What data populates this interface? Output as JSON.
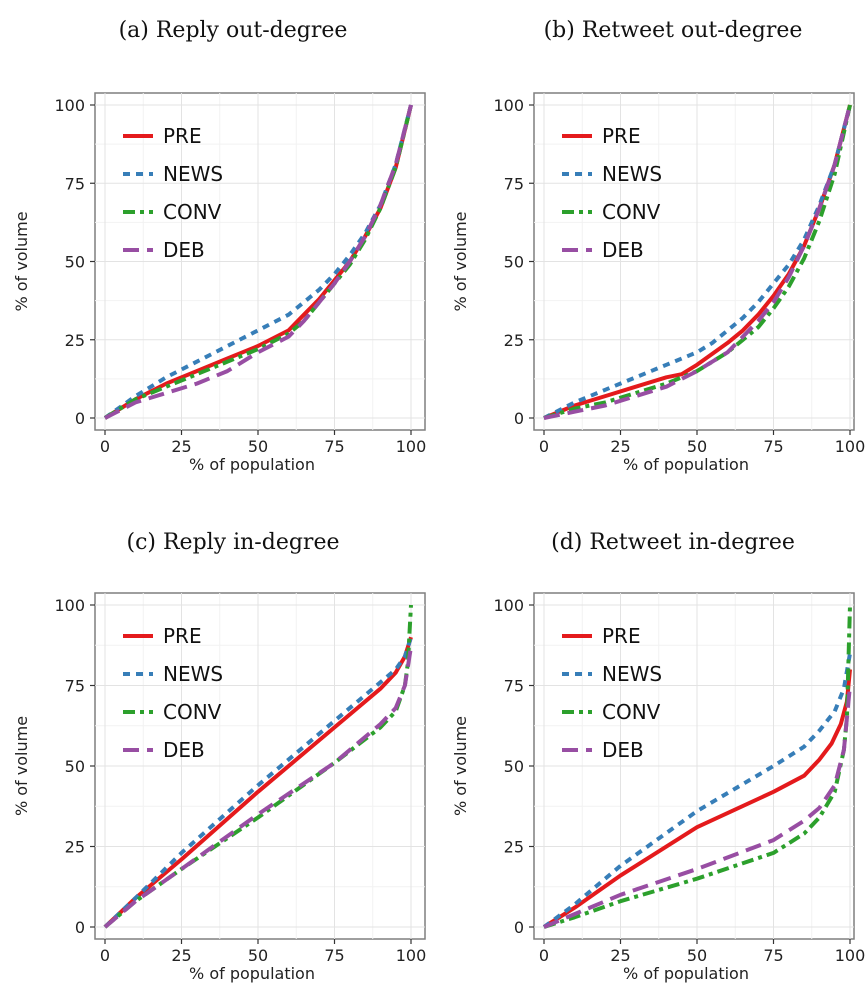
{
  "chart_data": [
    {
      "type": "line",
      "title": "(a) Reply out-degree",
      "xlabel": "% of population",
      "ylabel": "% of volume",
      "xlim": [
        0,
        100
      ],
      "ylim": [
        0,
        100
      ],
      "xticks": [
        "0",
        "25",
        "50",
        "75",
        "100"
      ],
      "yticks": [
        "0",
        "25",
        "50",
        "75",
        "100"
      ],
      "grid": true,
      "legend_position": "top-left",
      "series": [
        {
          "name": "PRE",
          "color": "#e41a1c",
          "dash": "solid",
          "points": [
            [
              0,
              0
            ],
            [
              10,
              6
            ],
            [
              20,
              11
            ],
            [
              30,
              15
            ],
            [
              40,
              19
            ],
            [
              50,
              23
            ],
            [
              60,
              28
            ],
            [
              65,
              33
            ],
            [
              70,
              38
            ],
            [
              75,
              44
            ],
            [
              80,
              50
            ],
            [
              85,
              58
            ],
            [
              90,
              67
            ],
            [
              95,
              80
            ],
            [
              100,
              100
            ]
          ]
        },
        {
          "name": "NEWS",
          "color": "#377eb8",
          "dash": "dotted",
          "points": [
            [
              0,
              0
            ],
            [
              10,
              7
            ],
            [
              20,
              13
            ],
            [
              30,
              18
            ],
            [
              40,
              23
            ],
            [
              50,
              28
            ],
            [
              60,
              33
            ],
            [
              65,
              37
            ],
            [
              70,
              41
            ],
            [
              75,
              46
            ],
            [
              80,
              52
            ],
            [
              85,
              59
            ],
            [
              90,
              68
            ],
            [
              95,
              81
            ],
            [
              100,
              100
            ]
          ]
        },
        {
          "name": "CONV",
          "color": "#2ca02c",
          "dash": "dashdot",
          "points": [
            [
              0,
              0
            ],
            [
              10,
              6
            ],
            [
              20,
              10
            ],
            [
              30,
              14
            ],
            [
              40,
              18
            ],
            [
              50,
              22
            ],
            [
              60,
              27
            ],
            [
              65,
              31
            ],
            [
              70,
              37
            ],
            [
              75,
              43
            ],
            [
              80,
              49
            ],
            [
              85,
              57
            ],
            [
              90,
              67
            ],
            [
              95,
              80
            ],
            [
              100,
              100
            ]
          ]
        },
        {
          "name": "DEB",
          "color": "#984ea3",
          "dash": "longdash",
          "points": [
            [
              0,
              0
            ],
            [
              10,
              5
            ],
            [
              20,
              8
            ],
            [
              30,
              11
            ],
            [
              40,
              15
            ],
            [
              50,
              21
            ],
            [
              60,
              26
            ],
            [
              65,
              31
            ],
            [
              70,
              37
            ],
            [
              75,
              43
            ],
            [
              80,
              50
            ],
            [
              85,
              58
            ],
            [
              90,
              68
            ],
            [
              95,
              81
            ],
            [
              100,
              100
            ]
          ]
        }
      ]
    },
    {
      "type": "line",
      "title": "(b) Retweet out-degree",
      "xlabel": "% of population",
      "ylabel": "% of volume",
      "xlim": [
        0,
        100
      ],
      "ylim": [
        0,
        100
      ],
      "xticks": [
        "0",
        "25",
        "50",
        "75",
        "100"
      ],
      "yticks": [
        "0",
        "25",
        "50",
        "75",
        "100"
      ],
      "grid": true,
      "legend_position": "top-left",
      "series": [
        {
          "name": "PRE",
          "color": "#e41a1c",
          "dash": "solid",
          "points": [
            [
              0,
              0
            ],
            [
              10,
              4
            ],
            [
              20,
              7
            ],
            [
              30,
              10
            ],
            [
              40,
              13
            ],
            [
              45,
              14
            ],
            [
              50,
              17
            ],
            [
              60,
              24
            ],
            [
              65,
              28
            ],
            [
              70,
              33
            ],
            [
              75,
              39
            ],
            [
              80,
              46
            ],
            [
              85,
              55
            ],
            [
              90,
              67
            ],
            [
              95,
              81
            ],
            [
              100,
              100
            ]
          ]
        },
        {
          "name": "NEWS",
          "color": "#377eb8",
          "dash": "dotted",
          "points": [
            [
              0,
              0
            ],
            [
              10,
              5
            ],
            [
              20,
              9
            ],
            [
              30,
              13
            ],
            [
              40,
              17
            ],
            [
              50,
              21
            ],
            [
              55,
              24
            ],
            [
              60,
              28
            ],
            [
              65,
              32
            ],
            [
              70,
              37
            ],
            [
              75,
              43
            ],
            [
              80,
              49
            ],
            [
              85,
              57
            ],
            [
              90,
              68
            ],
            [
              95,
              81
            ],
            [
              100,
              100
            ]
          ]
        },
        {
          "name": "CONV",
          "color": "#2ca02c",
          "dash": "dashdot",
          "points": [
            [
              0,
              0
            ],
            [
              10,
              3
            ],
            [
              20,
              5
            ],
            [
              30,
              8
            ],
            [
              40,
              11
            ],
            [
              50,
              15
            ],
            [
              60,
              21
            ],
            [
              65,
              25
            ],
            [
              70,
              29
            ],
            [
              75,
              35
            ],
            [
              80,
              42
            ],
            [
              85,
              51
            ],
            [
              90,
              63
            ],
            [
              95,
              78
            ],
            [
              100,
              100
            ]
          ]
        },
        {
          "name": "DEB",
          "color": "#984ea3",
          "dash": "longdash",
          "points": [
            [
              0,
              0
            ],
            [
              10,
              2
            ],
            [
              20,
              4
            ],
            [
              30,
              7
            ],
            [
              40,
              10
            ],
            [
              50,
              15
            ],
            [
              60,
              21
            ],
            [
              65,
              26
            ],
            [
              70,
              31
            ],
            [
              75,
              37
            ],
            [
              80,
              45
            ],
            [
              85,
              55
            ],
            [
              90,
              67
            ],
            [
              95,
              81
            ],
            [
              100,
              100
            ]
          ]
        }
      ]
    },
    {
      "type": "line",
      "title": "(c) Reply in-degree",
      "xlabel": "% of population",
      "ylabel": "% of volume",
      "xlim": [
        0,
        100
      ],
      "ylim": [
        0,
        100
      ],
      "xticks": [
        "0",
        "25",
        "50",
        "75",
        "100"
      ],
      "yticks": [
        "0",
        "25",
        "50",
        "75",
        "100"
      ],
      "grid": true,
      "legend_position": "top-left",
      "series": [
        {
          "name": "PRE",
          "color": "#e41a1c",
          "dash": "solid",
          "points": [
            [
              0,
              0
            ],
            [
              10,
              9
            ],
            [
              25,
              21
            ],
            [
              50,
              42
            ],
            [
              75,
              62
            ],
            [
              90,
              74
            ],
            [
              95,
              79
            ],
            [
              98,
              84
            ],
            [
              100,
              90
            ]
          ]
        },
        {
          "name": "NEWS",
          "color": "#377eb8",
          "dash": "dotted",
          "points": [
            [
              0,
              0
            ],
            [
              10,
              9
            ],
            [
              25,
              23
            ],
            [
              50,
              44
            ],
            [
              75,
              64
            ],
            [
              90,
              76
            ],
            [
              95,
              80
            ],
            [
              98,
              84
            ],
            [
              100,
              90
            ]
          ]
        },
        {
          "name": "CONV",
          "color": "#2ca02c",
          "dash": "dashdot",
          "points": [
            [
              0,
              0
            ],
            [
              10,
              8
            ],
            [
              25,
              18
            ],
            [
              50,
              34
            ],
            [
              75,
              51
            ],
            [
              90,
              62
            ],
            [
              95,
              67
            ],
            [
              98,
              75
            ],
            [
              99,
              82
            ],
            [
              100,
              100
            ]
          ]
        },
        {
          "name": "DEB",
          "color": "#984ea3",
          "dash": "longdash",
          "points": [
            [
              0,
              0
            ],
            [
              10,
              8
            ],
            [
              25,
              18
            ],
            [
              50,
              35
            ],
            [
              75,
              51
            ],
            [
              90,
              63
            ],
            [
              95,
              68
            ],
            [
              98,
              75
            ],
            [
              100,
              87
            ]
          ]
        }
      ]
    },
    {
      "type": "line",
      "title": "(d) Retweet in-degree",
      "xlabel": "% of population",
      "ylabel": "% of volume",
      "xlim": [
        0,
        100
      ],
      "ylim": [
        0,
        100
      ],
      "xticks": [
        "0",
        "25",
        "50",
        "75",
        "100"
      ],
      "yticks": [
        "0",
        "25",
        "50",
        "75",
        "100"
      ],
      "grid": true,
      "legend_position": "top-left",
      "series": [
        {
          "name": "PRE",
          "color": "#e41a1c",
          "dash": "solid",
          "points": [
            [
              0,
              0
            ],
            [
              10,
              6
            ],
            [
              25,
              16
            ],
            [
              50,
              31
            ],
            [
              75,
              42
            ],
            [
              85,
              47
            ],
            [
              90,
              52
            ],
            [
              94,
              57
            ],
            [
              97,
              63
            ],
            [
              99,
              70
            ],
            [
              100,
              80
            ]
          ]
        },
        {
          "name": "NEWS",
          "color": "#377eb8",
          "dash": "dotted",
          "points": [
            [
              0,
              0
            ],
            [
              10,
              7
            ],
            [
              25,
              19
            ],
            [
              50,
              36
            ],
            [
              75,
              50
            ],
            [
              85,
              56
            ],
            [
              90,
              61
            ],
            [
              95,
              67
            ],
            [
              98,
              74
            ],
            [
              100,
              85
            ]
          ]
        },
        {
          "name": "CONV",
          "color": "#2ca02c",
          "dash": "dashdot",
          "points": [
            [
              0,
              0
            ],
            [
              10,
              3
            ],
            [
              25,
              8
            ],
            [
              50,
              15
            ],
            [
              75,
              23
            ],
            [
              85,
              29
            ],
            [
              90,
              34
            ],
            [
              95,
              42
            ],
            [
              98,
              55
            ],
            [
              99,
              65
            ],
            [
              100,
              100
            ]
          ]
        },
        {
          "name": "DEB",
          "color": "#984ea3",
          "dash": "longdash",
          "points": [
            [
              0,
              0
            ],
            [
              10,
              4
            ],
            [
              25,
              10
            ],
            [
              50,
              18
            ],
            [
              75,
              27
            ],
            [
              85,
              33
            ],
            [
              90,
              37
            ],
            [
              95,
              44
            ],
            [
              98,
              55
            ],
            [
              100,
              75
            ]
          ]
        }
      ]
    }
  ]
}
